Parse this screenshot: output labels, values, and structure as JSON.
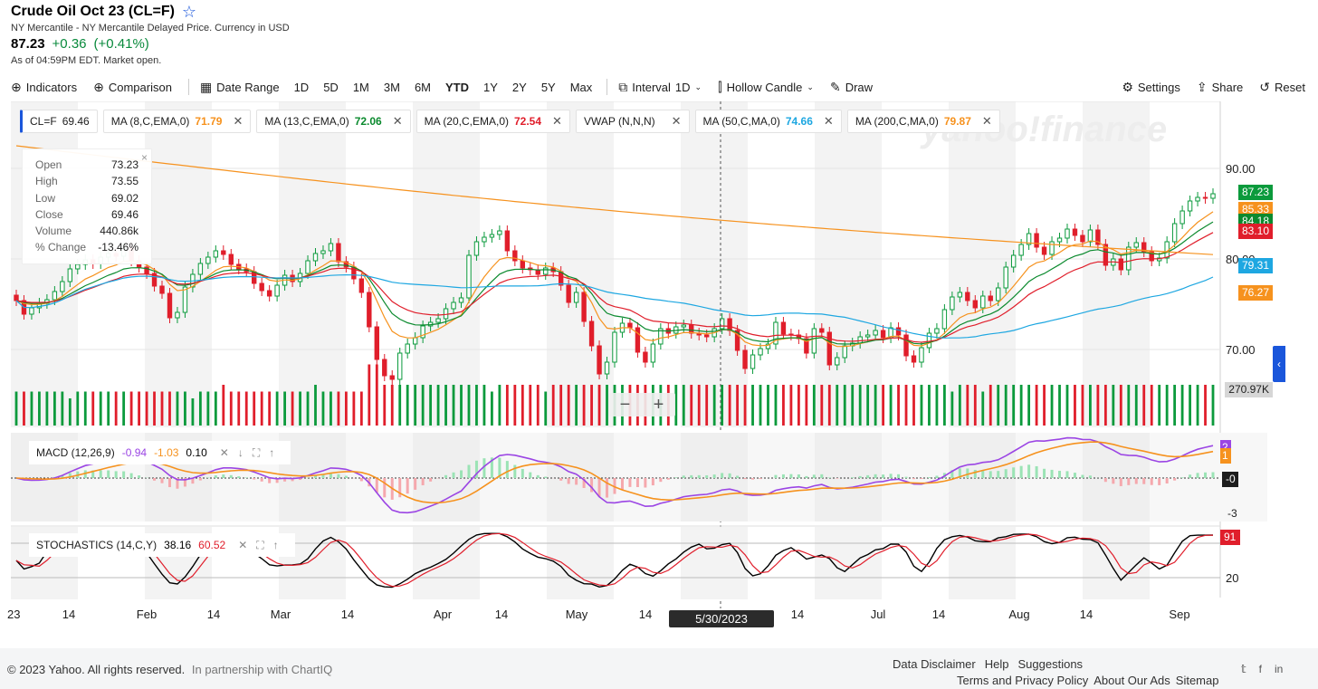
{
  "header": {
    "title": "Crude Oil Oct 23 (CL=F)",
    "subtitle": "NY Mercantile - NY Mercantile Delayed Price. Currency in USD",
    "price": "87.23",
    "change": "+0.36",
    "change_pct": "(+0.41%)",
    "as_of": "As of 04:59PM EDT. Market open."
  },
  "toolbar": {
    "indicators": "Indicators",
    "comparison": "Comparison",
    "date_range": "Date Range",
    "ranges": [
      "1D",
      "5D",
      "1M",
      "3M",
      "6M",
      "YTD",
      "1Y",
      "2Y",
      "5Y",
      "Max"
    ],
    "active_range": "YTD",
    "interval_label": "Interval",
    "interval_value": "1D",
    "chart_type": "Hollow Candle",
    "draw": "Draw",
    "settings": "Settings",
    "share": "Share",
    "reset": "Reset"
  },
  "studies": [
    {
      "label": "CL=F",
      "value": "69.46",
      "color": "#1d1d1d",
      "main": true
    },
    {
      "label": "MA (8,C,EMA,0)",
      "value": "71.79",
      "color": "#f6921e"
    },
    {
      "label": "MA (13,C,EMA,0)",
      "value": "72.06",
      "color": "#0b8a2e"
    },
    {
      "label": "MA (20,C,EMA,0)",
      "value": "72.54",
      "color": "#e01e2b"
    },
    {
      "label": "VWAP (N,N,N)",
      "value": "",
      "color": "#1d1d1d"
    },
    {
      "label": "MA (50,C,MA,0)",
      "value": "74.66",
      "color": "#1ea7e1"
    },
    {
      "label": "MA (200,C,MA,0)",
      "value": "79.87",
      "color": "#f6921e"
    }
  ],
  "hud": {
    "close_icon": "×",
    "rows": [
      {
        "k": "Open",
        "v": "73.23"
      },
      {
        "k": "High",
        "v": "73.55"
      },
      {
        "k": "Low",
        "v": "69.02"
      },
      {
        "k": "Close",
        "v": "69.46"
      },
      {
        "k": "Volume",
        "v": "440.86k"
      },
      {
        "k": "% Change",
        "v": "-13.46%"
      }
    ]
  },
  "watermark": "yahoo!finance",
  "macd": {
    "label": "MACD (12,26,9)",
    "v1": "-0.94",
    "v2": "-1.03",
    "v3": "0.10"
  },
  "stoch": {
    "label": "STOCHASTICS (14,C,Y)",
    "v1": "38.16",
    "v2": "60.52"
  },
  "right_tags": {
    "price": "87.23",
    "ma8": "85.33",
    "ma13": "84.18",
    "ma20": "83.10",
    "ma50": "79.31",
    "ma200": "76.27",
    "volume": "270.97K",
    "macd_a": "2",
    "macd_b": "1",
    "macd_zero": "-0",
    "stoch": "91"
  },
  "selected_date": "5/30/2023",
  "zoom": {
    "minus": "−",
    "plus": "+"
  },
  "side_tab": "‹",
  "footer": {
    "copyright": "© 2023 Yahoo. All rights reserved.",
    "partner": "In partnership with ChartIQ",
    "links1": [
      "Data Disclaimer",
      "Help",
      "Suggestions"
    ],
    "links2": [
      "Terms and Privacy Policy",
      "About Our Ads",
      "Sitemap"
    ]
  },
  "chart_data": {
    "type": "candlestick",
    "price_axis_ticks": [
      70.0,
      80.0,
      90.0
    ],
    "macd_axis_ticks": [
      2,
      1,
      0,
      -3
    ],
    "stoch_axis_ticks": [
      80,
      20
    ],
    "x_labels": [
      "23",
      "14",
      "Feb",
      "14",
      "Mar",
      "14",
      "Apr",
      "14",
      "May",
      "14",
      "14",
      "Jul",
      "14",
      "Aug",
      "14",
      "Sep"
    ],
    "close": [
      75.4,
      73.9,
      74.6,
      75.1,
      75.5,
      76.4,
      77.5,
      78.9,
      79.4,
      79.9,
      79.5,
      80.2,
      80.6,
      80.3,
      81.2,
      79.8,
      79.1,
      78.4,
      77.0,
      76.2,
      73.5,
      74.1,
      76.9,
      78.3,
      79.5,
      80.2,
      80.9,
      80.5,
      79.4,
      78.9,
      78.6,
      77.3,
      76.5,
      75.9,
      77.1,
      78.2,
      77.5,
      78.4,
      79.8,
      80.6,
      80.9,
      81.7,
      79.7,
      79.1,
      77.8,
      76.3,
      72.5,
      68.9,
      67.1,
      66.7,
      69.6,
      70.6,
      71.3,
      72.6,
      73.0,
      73.4,
      74.5,
      75.2,
      75.7,
      80.4,
      81.9,
      82.4,
      82.7,
      83.1,
      80.9,
      79.8,
      79.0,
      78.8,
      78.3,
      79.0,
      78.6,
      77.1,
      75.2,
      76.3,
      73.1,
      70.4,
      67.3,
      68.6,
      71.9,
      72.9,
      72.4,
      69.7,
      68.6,
      70.6,
      72.3,
      71.8,
      72.5,
      72.7,
      71.8,
      71.6,
      71.4,
      72.3,
      73.4,
      72.1,
      69.9,
      67.9,
      69.4,
      70.1,
      70.6,
      73.0,
      71.7,
      71.6,
      71.2,
      69.6,
      72.3,
      71.9,
      68.3,
      69.1,
      70.4,
      70.7,
      71.4,
      71.6,
      72.1,
      71.3,
      72.4,
      71.6,
      69.3,
      68.6,
      70.2,
      71.8,
      72.3,
      74.4,
      75.8,
      76.3,
      75.4,
      74.6,
      75.9,
      75.4,
      76.8,
      79.1,
      80.4,
      81.6,
      82.8,
      81.3,
      80.5,
      81.9,
      82.3,
      83.3,
      82.6,
      81.9,
      83.2,
      81.6,
      79.3,
      80.0,
      78.8,
      81.3,
      81.8,
      80.8,
      79.8,
      80.1,
      81.9,
      83.9,
      85.3,
      86.4,
      86.8,
      86.7,
      87.2
    ],
    "volume_levels": [
      0.5,
      0.5,
      0.5,
      0.5,
      0.5,
      0.5,
      0.5,
      0.4,
      0.5,
      0.5,
      0.5,
      0.5,
      0.5,
      0.5,
      0.5,
      0.5,
      0.5,
      0.5,
      0.5,
      0.5,
      0.5,
      0.5,
      0.5,
      0.4,
      0.5,
      0.5,
      0.5,
      0.6,
      0.5,
      0.5,
      0.5,
      0.5,
      0.5,
      0.5,
      0.5,
      0.5,
      0.5,
      0.5,
      0.5,
      0.6,
      0.5,
      0.5,
      0.5,
      0.5,
      0.5,
      0.5,
      0.9,
      0.9,
      0.6,
      0.6,
      0.6,
      0.6,
      0.6,
      0.6,
      0.6,
      0.6,
      0.6,
      0.6,
      0.6,
      0.6,
      0.6,
      0.6,
      0.5,
      0.6,
      0.6,
      0.6,
      0.6,
      0.6,
      0.6,
      0.5,
      0.6,
      0.6,
      0.6,
      0.6,
      0.6,
      0.6,
      0.6,
      0.6,
      0.6,
      0.6,
      0.6,
      0.6,
      0.6,
      0.6,
      0.6,
      0.6,
      0.6,
      0.6,
      0.6,
      0.6,
      0.6,
      0.6,
      0.6,
      0.6,
      0.6,
      0.6,
      0.6,
      0.6,
      0.6,
      0.6,
      0.6,
      0.6,
      0.6,
      0.6,
      0.6,
      0.6,
      0.6,
      0.6,
      0.6,
      0.6,
      0.6,
      0.6,
      0.6,
      0.6,
      0.6,
      0.6,
      0.6,
      0.6,
      0.6,
      0.6,
      0.6,
      0.6,
      0.5,
      0.6,
      0.6,
      0.6,
      0.5,
      0.6,
      0.6,
      0.6,
      0.6,
      0.6,
      0.6,
      0.6,
      0.6,
      0.6,
      0.6,
      0.6,
      0.6,
      0.6,
      0.6,
      0.6,
      0.6,
      0.6,
      0.6,
      0.6,
      0.6,
      0.6,
      0.6,
      0.6,
      0.6,
      0.6,
      0.6,
      0.6,
      0.6,
      0.6,
      0.6
    ]
  }
}
